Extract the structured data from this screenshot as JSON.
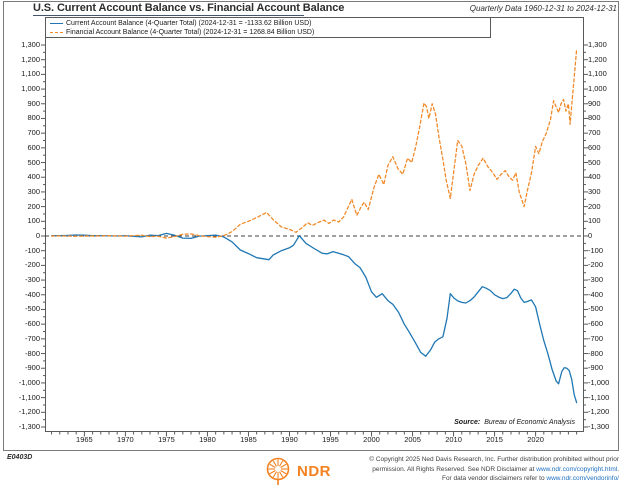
{
  "header": {
    "title": "U.S. Current Account Balance vs. Financial Account Balance",
    "period": "Quarterly Data 1960-12-31 to 2024-12-31"
  },
  "legend": {
    "items": [
      {
        "label": "Current Account Balance (4-Quarter Total) (2024-12-31 = -1133.62 Billion USD)",
        "color": "#1f77b4",
        "line_style": "solid"
      },
      {
        "label": "Financial Account Balance (4-Quarter Total) (2024-12-31 = 1268.84 Billion USD)",
        "color": "#f28a2a",
        "line_style": "dashed"
      }
    ]
  },
  "chart_data": {
    "type": "line",
    "title": "U.S. Current Account Balance vs. Financial Account Balance",
    "xlabel": "",
    "ylabel": "Billion USD",
    "xlim": [
      1960.2,
      2025.9
    ],
    "ylim": [
      -1300,
      1300
    ],
    "grid": false,
    "zero_line": "dashed",
    "legend_position": "top-left",
    "x_tick_labels": [
      "1965",
      "1970",
      "1975",
      "1980",
      "1985",
      "1990",
      "1995",
      "2000",
      "2005",
      "2010",
      "2015",
      "2020"
    ],
    "x_tick_values": [
      1965,
      1970,
      1975,
      1980,
      1985,
      1990,
      1995,
      2000,
      2005,
      2010,
      2015,
      2020
    ],
    "x_minor_tick_start": 1961,
    "x_minor_tick_end": 2025,
    "y_tick_labels": [
      "1,300",
      "1,200",
      "1,100",
      "1,000",
      "900",
      "800",
      "700",
      "600",
      "500",
      "400",
      "300",
      "200",
      "100",
      "0",
      "-100",
      "-200",
      "-300",
      "-400",
      "-500",
      "-600",
      "-700",
      "-800",
      "-900",
      "-1,000",
      "-1,100",
      "-1,200",
      "-1,300"
    ],
    "y_tick_values": [
      1300,
      1200,
      1100,
      1000,
      900,
      800,
      700,
      600,
      500,
      400,
      300,
      200,
      100,
      0,
      -100,
      -200,
      -300,
      -400,
      -500,
      -600,
      -700,
      -800,
      -900,
      -1000,
      -1100,
      -1200,
      -1300
    ],
    "y_minor_step": 50,
    "source_label": "Source:",
    "source_value": "Bureau of Economic Analysis",
    "series": [
      {
        "name": "Current Account Balance (4-Quarter Total)",
        "color": "#1f77b4",
        "style": "solid",
        "last_date": "2024-12-31",
        "last_value": -1133.62,
        "points": [
          [
            1961,
            3
          ],
          [
            1962,
            3
          ],
          [
            1963,
            4
          ],
          [
            1964,
            7
          ],
          [
            1965,
            6
          ],
          [
            1966,
            3
          ],
          [
            1967,
            2
          ],
          [
            1968,
            1
          ],
          [
            1969,
            0
          ],
          [
            1970,
            2
          ],
          [
            1971,
            -2
          ],
          [
            1972,
            -6
          ],
          [
            1973,
            6
          ],
          [
            1974,
            3
          ],
          [
            1975,
            18
          ],
          [
            1976,
            5
          ],
          [
            1977,
            -14
          ],
          [
            1978,
            -16
          ],
          [
            1979,
            -1
          ],
          [
            1980,
            3
          ],
          [
            1981,
            6
          ],
          [
            1982,
            -6
          ],
          [
            1983,
            -40
          ],
          [
            1984,
            -95
          ],
          [
            1985,
            -120
          ],
          [
            1986,
            -148
          ],
          [
            1987.5,
            -161
          ],
          [
            1988,
            -130
          ],
          [
            1989,
            -100
          ],
          [
            1990,
            -80
          ],
          [
            1990.5,
            -62
          ],
          [
            1991.2,
            2
          ],
          [
            1992,
            -50
          ],
          [
            1993,
            -85
          ],
          [
            1994,
            -118
          ],
          [
            1994.6,
            -122
          ],
          [
            1995.3,
            -106
          ],
          [
            1996,
            -118
          ],
          [
            1996.6,
            -128
          ],
          [
            1997.2,
            -140
          ],
          [
            1998,
            -190
          ],
          [
            1998.6,
            -215
          ],
          [
            1999.3,
            -280
          ],
          [
            2000,
            -380
          ],
          [
            2000.6,
            -417
          ],
          [
            2001.3,
            -393
          ],
          [
            2002,
            -440
          ],
          [
            2002.6,
            -465
          ],
          [
            2003.3,
            -520
          ],
          [
            2004,
            -600
          ],
          [
            2004.6,
            -655
          ],
          [
            2005.3,
            -722
          ],
          [
            2006,
            -792
          ],
          [
            2006.6,
            -818
          ],
          [
            2007.2,
            -775
          ],
          [
            2007.7,
            -722
          ],
          [
            2008.2,
            -700
          ],
          [
            2008.7,
            -686
          ],
          [
            2009.2,
            -560
          ],
          [
            2009.6,
            -392
          ],
          [
            2010,
            -420
          ],
          [
            2010.5,
            -442
          ],
          [
            2011,
            -452
          ],
          [
            2011.5,
            -456
          ],
          [
            2012,
            -440
          ],
          [
            2012.5,
            -415
          ],
          [
            2013,
            -380
          ],
          [
            2013.5,
            -345
          ],
          [
            2014,
            -356
          ],
          [
            2014.5,
            -372
          ],
          [
            2015,
            -400
          ],
          [
            2015.5,
            -416
          ],
          [
            2016,
            -426
          ],
          [
            2016.5,
            -419
          ],
          [
            2017,
            -390
          ],
          [
            2017.4,
            -362
          ],
          [
            2017.8,
            -372
          ],
          [
            2018.2,
            -422
          ],
          [
            2018.6,
            -452
          ],
          [
            2019,
            -446
          ],
          [
            2019.5,
            -435
          ],
          [
            2020,
            -482
          ],
          [
            2020.5,
            -602
          ],
          [
            2021,
            -712
          ],
          [
            2021.5,
            -802
          ],
          [
            2022,
            -906
          ],
          [
            2022.5,
            -986
          ],
          [
            2022.8,
            -1006
          ],
          [
            2023.2,
            -922
          ],
          [
            2023.5,
            -896
          ],
          [
            2023.8,
            -900
          ],
          [
            2024.1,
            -916
          ],
          [
            2024.4,
            -976
          ],
          [
            2024.7,
            -1080
          ],
          [
            2025,
            -1133.62
          ]
        ]
      },
      {
        "name": "Financial Account Balance (4-Quarter Total)",
        "color": "#f28a2a",
        "style": "dashed",
        "last_date": "2024-12-31",
        "last_value": 1268.84,
        "points": [
          [
            1961,
            0
          ],
          [
            1962,
            1
          ],
          [
            1963,
            0
          ],
          [
            1964,
            -2
          ],
          [
            1965,
            -1
          ],
          [
            1966,
            1
          ],
          [
            1967,
            0
          ],
          [
            1968,
            2
          ],
          [
            1969,
            1
          ],
          [
            1970,
            -1
          ],
          [
            1971,
            3
          ],
          [
            1972,
            5
          ],
          [
            1973,
            -4
          ],
          [
            1974,
            -2
          ],
          [
            1975,
            -14
          ],
          [
            1976,
            -4
          ],
          [
            1977,
            12
          ],
          [
            1978,
            14
          ],
          [
            1979,
            2
          ],
          [
            1980,
            -4
          ],
          [
            1981,
            -8
          ],
          [
            1982,
            2
          ],
          [
            1983,
            30
          ],
          [
            1984,
            80
          ],
          [
            1985,
            100
          ],
          [
            1986,
            126
          ],
          [
            1987.2,
            160
          ],
          [
            1988,
            112
          ],
          [
            1989,
            62
          ],
          [
            1990,
            45
          ],
          [
            1990.8,
            25
          ],
          [
            1991.5,
            55
          ],
          [
            1992.2,
            90
          ],
          [
            1992.8,
            72
          ],
          [
            1993.5,
            92
          ],
          [
            1994.2,
            108
          ],
          [
            1994.8,
            86
          ],
          [
            1995.4,
            108
          ],
          [
            1996,
            95
          ],
          [
            1996.6,
            130
          ],
          [
            1997.1,
            190
          ],
          [
            1997.6,
            250
          ],
          [
            1998.2,
            140
          ],
          [
            1998.7,
            195
          ],
          [
            1999.1,
            230
          ],
          [
            1999.6,
            180
          ],
          [
            2000.3,
            330
          ],
          [
            2000.9,
            420
          ],
          [
            2001.5,
            350
          ],
          [
            2002,
            480
          ],
          [
            2002.6,
            540
          ],
          [
            2003.2,
            460
          ],
          [
            2003.8,
            420
          ],
          [
            2004.4,
            530
          ],
          [
            2004.9,
            500
          ],
          [
            2005.4,
            610
          ],
          [
            2005.9,
            750
          ],
          [
            2006.4,
            905
          ],
          [
            2006.7,
            880
          ],
          [
            2007,
            800
          ],
          [
            2007.4,
            900
          ],
          [
            2007.8,
            830
          ],
          [
            2008.2,
            680
          ],
          [
            2008.7,
            520
          ],
          [
            2009.1,
            380
          ],
          [
            2009.6,
            255
          ],
          [
            2010,
            430
          ],
          [
            2010.5,
            650
          ],
          [
            2011,
            612
          ],
          [
            2011.5,
            490
          ],
          [
            2012,
            310
          ],
          [
            2012.5,
            420
          ],
          [
            2013,
            480
          ],
          [
            2013.6,
            530
          ],
          [
            2014.2,
            470
          ],
          [
            2014.8,
            430
          ],
          [
            2015.3,
            385
          ],
          [
            2015.8,
            420
          ],
          [
            2016.3,
            445
          ],
          [
            2016.8,
            400
          ],
          [
            2017.2,
            380
          ],
          [
            2017.6,
            430
          ],
          [
            2018,
            300
          ],
          [
            2018.6,
            200
          ],
          [
            2019,
            310
          ],
          [
            2019.5,
            430
          ],
          [
            2020,
            610
          ],
          [
            2020.4,
            560
          ],
          [
            2020.8,
            640
          ],
          [
            2021.3,
            700
          ],
          [
            2021.8,
            790
          ],
          [
            2022.2,
            920
          ],
          [
            2022.5,
            880
          ],
          [
            2022.8,
            840
          ],
          [
            2023.1,
            900
          ],
          [
            2023.4,
            930
          ],
          [
            2023.7,
            850
          ],
          [
            2024,
            900
          ],
          [
            2024.2,
            760
          ],
          [
            2024.5,
            950
          ],
          [
            2024.7,
            1080
          ],
          [
            2025,
            1268.84
          ]
        ]
      }
    ]
  },
  "footer": {
    "chart_id": "E0403D",
    "logo_text": "NDR",
    "logo_color": "#f58220",
    "link_color": "#1d6fc0",
    "copyright_lines": [
      [
        {
          "t": "© Copyright 2025 Ned Davis Research, Inc. Further distribution prohibited without prior"
        }
      ],
      [
        {
          "t": "permission. All Rights Reserved. See NDR Disclaimer at "
        },
        {
          "t": "www.ndr.com/copyright.html",
          "link": true
        },
        {
          "t": "."
        }
      ],
      [
        {
          "t": "For data vendor disclaimers refer to "
        },
        {
          "t": "www.ndr.com/vendorinfo/",
          "link": true
        }
      ]
    ]
  }
}
